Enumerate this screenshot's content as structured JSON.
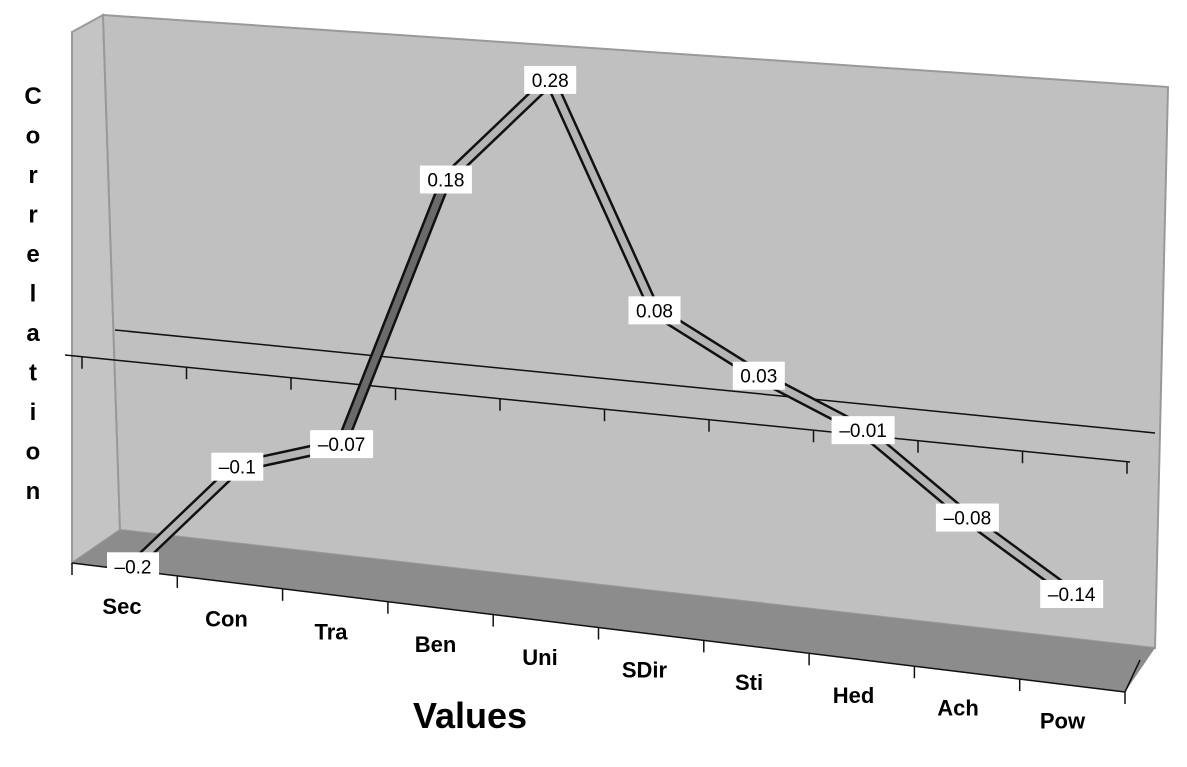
{
  "chart_data": {
    "type": "line",
    "style": "3d-ribbon",
    "title": "",
    "xlabel": "Values",
    "ylabel": "Correlation",
    "categories": [
      "Sec",
      "Con",
      "Tra",
      "Ben",
      "Uni",
      "SDir",
      "Sti",
      "Hed",
      "Ach",
      "Pow"
    ],
    "values": [
      -0.2,
      -0.1,
      -0.07,
      0.18,
      0.28,
      0.08,
      0.03,
      -0.01,
      -0.08,
      -0.14
    ],
    "data_labels": [
      "–0.2",
      "–0.1",
      "–0.07",
      "0.18",
      "0.28",
      "0.08",
      "0.03",
      "–0.01",
      "–0.08",
      "–0.14"
    ],
    "grid": false,
    "legend": "none",
    "colors": {
      "wall": "#c0c0c0",
      "floor": "#8c8c8c",
      "ribbon": "#b4b4b4",
      "ribbon_dark": "#6a6a6a",
      "outline": "#111111"
    }
  }
}
